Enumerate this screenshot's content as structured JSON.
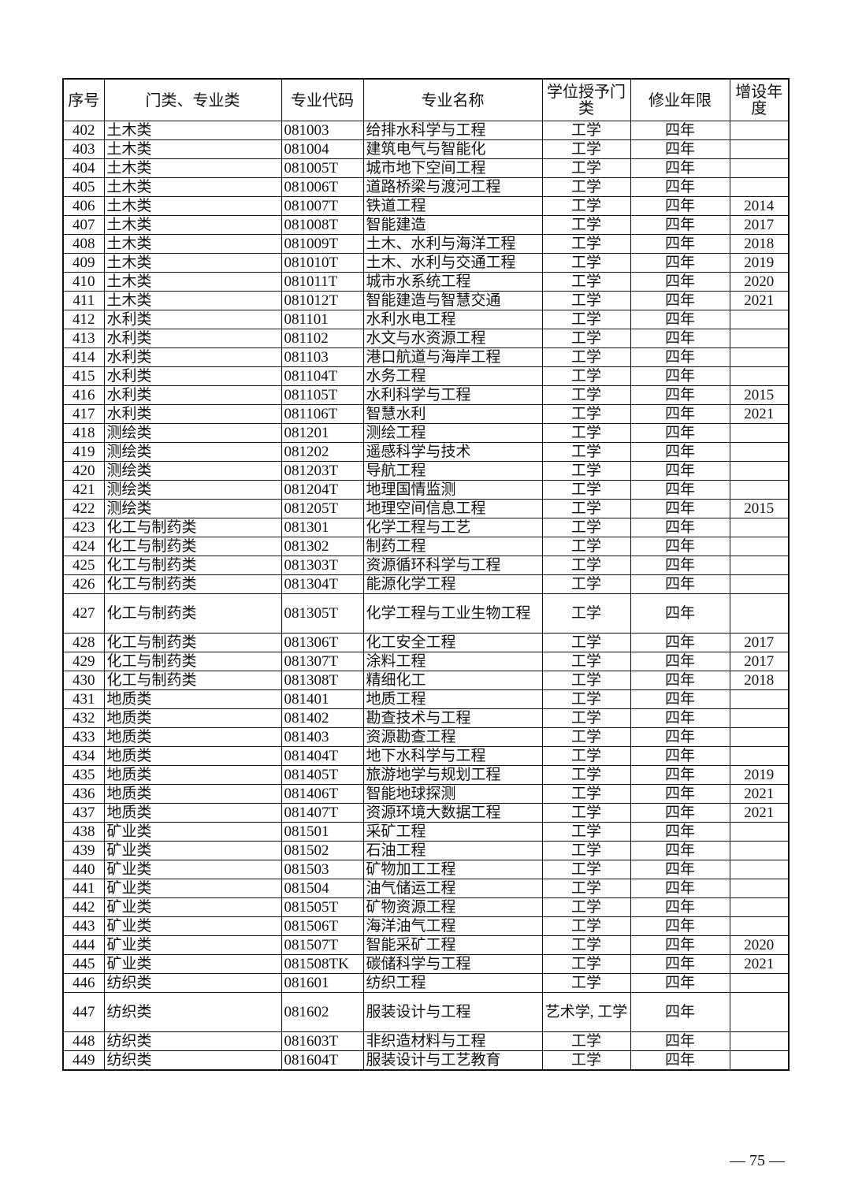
{
  "table": {
    "headers": [
      "序号",
      "门类、专业类",
      "专业代码",
      "专业名称",
      "学位授予门类",
      "修业年限",
      "增设年度"
    ],
    "rows": [
      [
        "402",
        "土木类",
        "081003",
        "给排水科学与工程",
        "工学",
        "四年",
        ""
      ],
      [
        "403",
        "土木类",
        "081004",
        "建筑电气与智能化",
        "工学",
        "四年",
        ""
      ],
      [
        "404",
        "土木类",
        "081005T",
        "城市地下空间工程",
        "工学",
        "四年",
        ""
      ],
      [
        "405",
        "土木类",
        "081006T",
        "道路桥梁与渡河工程",
        "工学",
        "四年",
        ""
      ],
      [
        "406",
        "土木类",
        "081007T",
        "铁道工程",
        "工学",
        "四年",
        "2014"
      ],
      [
        "407",
        "土木类",
        "081008T",
        "智能建造",
        "工学",
        "四年",
        "2017"
      ],
      [
        "408",
        "土木类",
        "081009T",
        "土木、水利与海洋工程",
        "工学",
        "四年",
        "2018"
      ],
      [
        "409",
        "土木类",
        "081010T",
        "土木、水利与交通工程",
        "工学",
        "四年",
        "2019"
      ],
      [
        "410",
        "土木类",
        "081011T",
        "城市水系统工程",
        "工学",
        "四年",
        "2020"
      ],
      [
        "411",
        "土木类",
        "081012T",
        "智能建造与智慧交通",
        "工学",
        "四年",
        "2021"
      ],
      [
        "412",
        "水利类",
        "081101",
        "水利水电工程",
        "工学",
        "四年",
        ""
      ],
      [
        "413",
        "水利类",
        "081102",
        "水文与水资源工程",
        "工学",
        "四年",
        ""
      ],
      [
        "414",
        "水利类",
        "081103",
        "港口航道与海岸工程",
        "工学",
        "四年",
        ""
      ],
      [
        "415",
        "水利类",
        "081104T",
        "水务工程",
        "工学",
        "四年",
        ""
      ],
      [
        "416",
        "水利类",
        "081105T",
        "水利科学与工程",
        "工学",
        "四年",
        "2015"
      ],
      [
        "417",
        "水利类",
        "081106T",
        "智慧水利",
        "工学",
        "四年",
        "2021"
      ],
      [
        "418",
        "测绘类",
        "081201",
        "测绘工程",
        "工学",
        "四年",
        ""
      ],
      [
        "419",
        "测绘类",
        "081202",
        "遥感科学与技术",
        "工学",
        "四年",
        ""
      ],
      [
        "420",
        "测绘类",
        "081203T",
        "导航工程",
        "工学",
        "四年",
        ""
      ],
      [
        "421",
        "测绘类",
        "081204T",
        "地理国情监测",
        "工学",
        "四年",
        ""
      ],
      [
        "422",
        "测绘类",
        "081205T",
        "地理空间信息工程",
        "工学",
        "四年",
        "2015"
      ],
      [
        "423",
        "化工与制药类",
        "081301",
        "化学工程与工艺",
        "工学",
        "四年",
        ""
      ],
      [
        "424",
        "化工与制药类",
        "081302",
        "制药工程",
        "工学",
        "四年",
        ""
      ],
      [
        "425",
        "化工与制药类",
        "081303T",
        "资源循环科学与工程",
        "工学",
        "四年",
        ""
      ],
      [
        "426",
        "化工与制药类",
        "081304T",
        "能源化学工程",
        "工学",
        "四年",
        ""
      ],
      [
        "427",
        "化工与制药类",
        "081305T",
        "化学工程与工业生物工程",
        "工学",
        "四年",
        ""
      ],
      [
        "428",
        "化工与制药类",
        "081306T",
        "化工安全工程",
        "工学",
        "四年",
        "2017"
      ],
      [
        "429",
        "化工与制药类",
        "081307T",
        "涂料工程",
        "工学",
        "四年",
        "2017"
      ],
      [
        "430",
        "化工与制药类",
        "081308T",
        "精细化工",
        "工学",
        "四年",
        "2018"
      ],
      [
        "431",
        "地质类",
        "081401",
        "地质工程",
        "工学",
        "四年",
        ""
      ],
      [
        "432",
        "地质类",
        "081402",
        "勘查技术与工程",
        "工学",
        "四年",
        ""
      ],
      [
        "433",
        "地质类",
        "081403",
        "资源勘查工程",
        "工学",
        "四年",
        ""
      ],
      [
        "434",
        "地质类",
        "081404T",
        "地下水科学与工程",
        "工学",
        "四年",
        ""
      ],
      [
        "435",
        "地质类",
        "081405T",
        "旅游地学与规划工程",
        "工学",
        "四年",
        "2019"
      ],
      [
        "436",
        "地质类",
        "081406T",
        "智能地球探测",
        "工学",
        "四年",
        "2021"
      ],
      [
        "437",
        "地质类",
        "081407T",
        "资源环境大数据工程",
        "工学",
        "四年",
        "2021"
      ],
      [
        "438",
        "矿业类",
        "081501",
        "采矿工程",
        "工学",
        "四年",
        ""
      ],
      [
        "439",
        "矿业类",
        "081502",
        "石油工程",
        "工学",
        "四年",
        ""
      ],
      [
        "440",
        "矿业类",
        "081503",
        "矿物加工工程",
        "工学",
        "四年",
        ""
      ],
      [
        "441",
        "矿业类",
        "081504",
        "油气储运工程",
        "工学",
        "四年",
        ""
      ],
      [
        "442",
        "矿业类",
        "081505T",
        "矿物资源工程",
        "工学",
        "四年",
        ""
      ],
      [
        "443",
        "矿业类",
        "081506T",
        "海洋油气工程",
        "工学",
        "四年",
        ""
      ],
      [
        "444",
        "矿业类",
        "081507T",
        "智能采矿工程",
        "工学",
        "四年",
        "2020"
      ],
      [
        "445",
        "矿业类",
        "081508TK",
        "碳储科学与工程",
        "工学",
        "四年",
        "2021"
      ],
      [
        "446",
        "纺织类",
        "081601",
        "纺织工程",
        "工学",
        "四年",
        ""
      ],
      [
        "447",
        "纺织类",
        "081602",
        "服装设计与工程",
        "艺术学, 工学",
        "四年",
        ""
      ],
      [
        "448",
        "纺织类",
        "081603T",
        "非织造材料与工程",
        "工学",
        "四年",
        ""
      ],
      [
        "449",
        "纺织类",
        "081604T",
        "服装设计与工艺教育",
        "工学",
        "四年",
        ""
      ]
    ]
  },
  "page_number": "— 75 —"
}
